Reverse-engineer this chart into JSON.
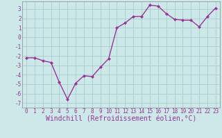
{
  "x": [
    0,
    1,
    2,
    3,
    4,
    5,
    6,
    7,
    8,
    9,
    10,
    11,
    12,
    13,
    14,
    15,
    16,
    17,
    18,
    19,
    20,
    21,
    22,
    23
  ],
  "y": [
    -2.2,
    -2.2,
    -2.5,
    -2.7,
    -4.8,
    -6.6,
    -4.9,
    -4.1,
    -4.2,
    -3.2,
    -2.3,
    1.0,
    1.5,
    2.2,
    2.2,
    3.4,
    3.3,
    2.5,
    1.9,
    1.8,
    1.8,
    1.1,
    2.2,
    3.1
  ],
  "line_color": "#993399",
  "marker": "D",
  "marker_size": 2.0,
  "bg_color": "#cce8e8",
  "grid_color": "#aacccc",
  "xlabel": "Windchill (Refroidissement éolien,°C)",
  "ylim": [
    -7.5,
    3.8
  ],
  "yticks": [
    -7,
    -6,
    -5,
    -4,
    -3,
    -2,
    -1,
    0,
    1,
    2,
    3
  ],
  "xticks": [
    0,
    1,
    2,
    3,
    4,
    5,
    6,
    7,
    8,
    9,
    10,
    11,
    12,
    13,
    14,
    15,
    16,
    17,
    18,
    19,
    20,
    21,
    22,
    23
  ],
  "tick_color": "#993399",
  "tick_fontsize": 5.5,
  "xlabel_fontsize": 7.0,
  "line_width": 1.0,
  "spine_color": "#888888"
}
